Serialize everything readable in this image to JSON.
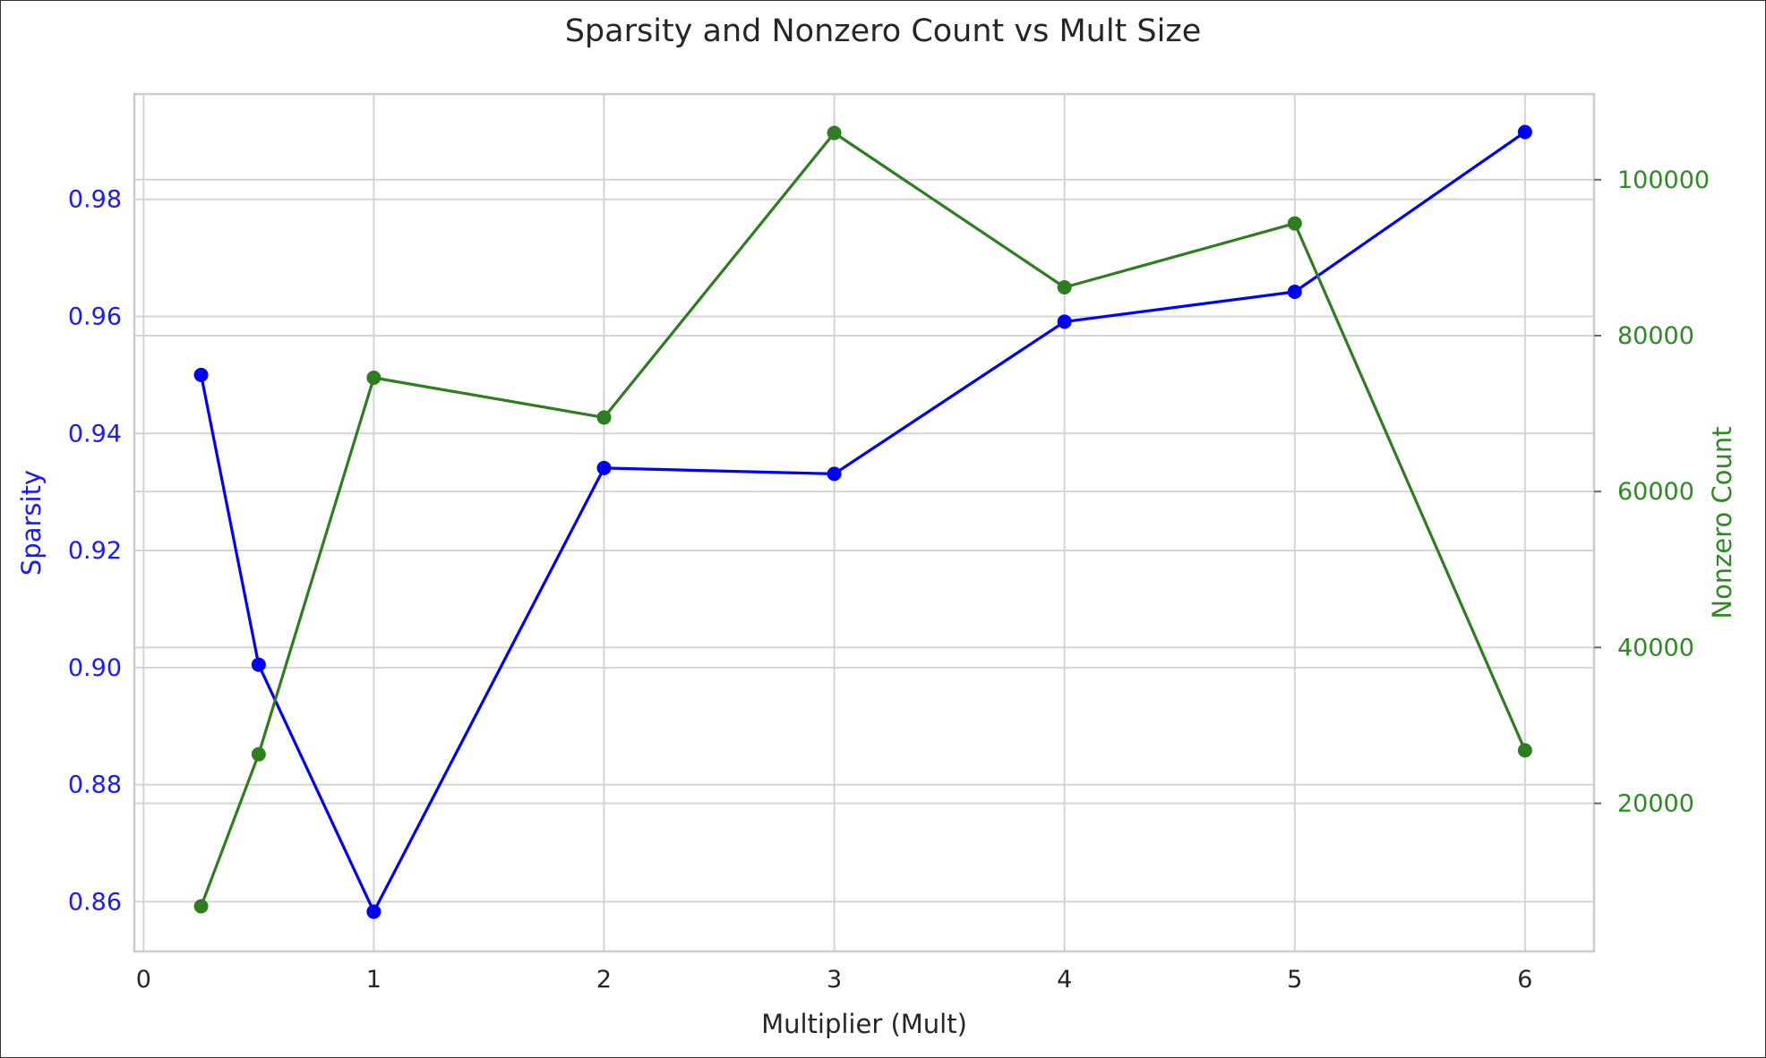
{
  "chart_data": {
    "type": "line",
    "title": "Sparsity and Nonzero Count vs Mult Size",
    "xlabel": "Multiplier (Mult)",
    "ylabel_left": "Sparsity",
    "ylabel_right": "Nonzero Count",
    "x": [
      0.25,
      0.5,
      1,
      2,
      3,
      4,
      5,
      6
    ],
    "xlim": [
      -0.04,
      6.3
    ],
    "xticks": [
      0,
      1,
      2,
      3,
      4,
      5,
      6
    ],
    "ylim_left": [
      0.8515,
      0.998
    ],
    "yticks_left": [
      0.86,
      0.88,
      0.9,
      0.92,
      0.94,
      0.96,
      0.98
    ],
    "ylim_right": [
      1000,
      111000
    ],
    "yticks_right": [
      20000,
      40000,
      60000,
      80000,
      100000
    ],
    "grid": true,
    "legend": "none",
    "series": [
      {
        "axis": "left",
        "color": "#0000ff",
        "marker": "circle",
        "values": [
          0.95,
          0.9005,
          0.8583,
          0.9341,
          0.9331,
          0.9591,
          0.9642,
          0.9915
        ]
      },
      {
        "axis": "right",
        "color": "#2e7d1f",
        "marker": "circle",
        "values": [
          6800,
          26300,
          74600,
          69500,
          106000,
          86200,
          94400,
          26800
        ]
      }
    ],
    "colors": {
      "left_axis": "#1a1aff",
      "right_axis": "#2e8b22",
      "grid": "#d4d4d4",
      "spine": "#cccccc",
      "text": "#262626"
    }
  }
}
